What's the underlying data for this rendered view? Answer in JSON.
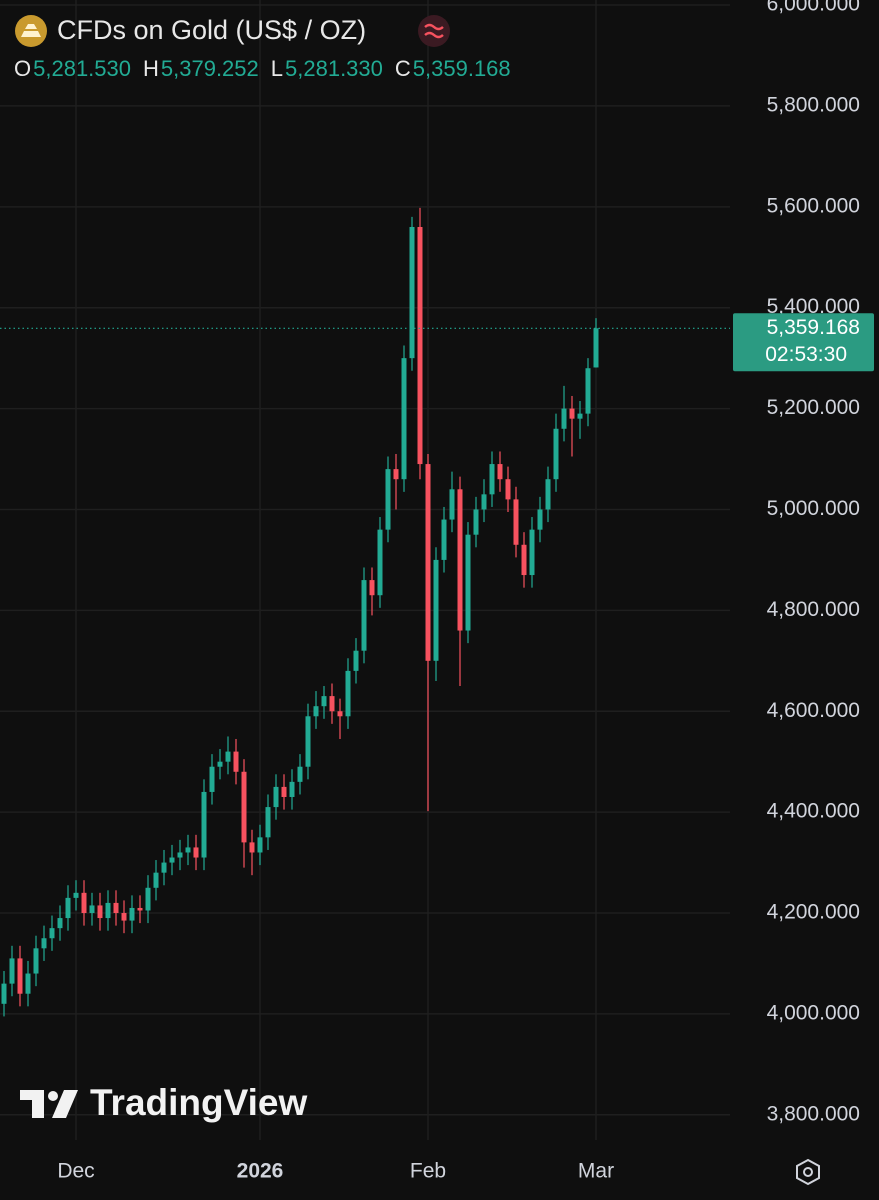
{
  "chart_data": {
    "type": "candlestick",
    "title": "CFDs on Gold (US$ / OZ)",
    "ohlc": [
      {
        "label": "O",
        "value": "5,281.530"
      },
      {
        "label": "H",
        "value": "5,379.252"
      },
      {
        "label": "L",
        "value": "5,281.330"
      },
      {
        "label": "C",
        "value": "5,359.168"
      }
    ],
    "categories": [
      null,
      null,
      null,
      null,
      null,
      null,
      null,
      null,
      null,
      "Dec",
      null,
      null,
      null,
      null,
      null,
      null,
      null,
      null,
      null,
      null,
      null,
      null,
      null,
      null,
      null,
      null,
      null,
      null,
      null,
      null,
      null,
      null,
      "2026",
      null,
      null,
      null,
      null,
      null,
      null,
      null,
      null,
      null,
      null,
      null,
      null,
      null,
      null,
      null,
      null,
      null,
      null,
      null,
      null,
      "Feb",
      null,
      null,
      null,
      null,
      null,
      null,
      null,
      null,
      null,
      null,
      null,
      null,
      null,
      null,
      null,
      null,
      null,
      null,
      null,
      null,
      "Mar"
    ],
    "open": [
      4020,
      4060,
      4110,
      4040,
      4080,
      4130,
      4150,
      4170,
      4190,
      4230,
      4240,
      4200,
      4215,
      4190,
      4220,
      4200,
      4185,
      4210,
      4205,
      4250,
      4280,
      4300,
      4310,
      4320,
      4330,
      4310,
      4440,
      4490,
      4500,
      4520,
      4480,
      4340,
      4320,
      4350,
      4410,
      4450,
      4430,
      4460,
      4490,
      4590,
      4610,
      4630,
      4600,
      4590,
      4680,
      4720,
      4860,
      4830,
      4960,
      5080,
      5060,
      5300,
      5560,
      5090,
      4700,
      4900,
      4980,
      5040,
      4760,
      4950,
      5000,
      5030,
      5090,
      5060,
      5020,
      4930,
      4870,
      4960,
      5000,
      5060,
      5160,
      5200,
      5180,
      5190,
      5281.53
    ],
    "high": [
      4085,
      4135,
      4135,
      4105,
      4155,
      4175,
      4195,
      4215,
      4255,
      4265,
      4265,
      4240,
      4240,
      4245,
      4245,
      4225,
      4235,
      4235,
      4275,
      4305,
      4325,
      4335,
      4345,
      4355,
      4355,
      4465,
      4515,
      4525,
      4550,
      4545,
      4505,
      4365,
      4375,
      4435,
      4475,
      4475,
      4485,
      4515,
      4615,
      4640,
      4650,
      4655,
      4625,
      4705,
      4745,
      4885,
      4885,
      4985,
      5105,
      5110,
      5325,
      5580,
      5598,
      5110,
      4925,
      5005,
      5075,
      5065,
      4975,
      5025,
      5060,
      5115,
      5115,
      5085,
      5045,
      4955,
      4985,
      5025,
      5085,
      5190,
      5245,
      5225,
      5215,
      5300,
      5379.252
    ],
    "low": [
      3995,
      4035,
      4015,
      4015,
      4055,
      4105,
      4125,
      4145,
      4165,
      4205,
      4175,
      4175,
      4165,
      4165,
      4175,
      4160,
      4160,
      4180,
      4180,
      4225,
      4255,
      4275,
      4285,
      4295,
      4285,
      4285,
      4415,
      4465,
      4475,
      4455,
      4290,
      4275,
      4295,
      4325,
      4385,
      4405,
      4405,
      4435,
      4465,
      4565,
      4585,
      4575,
      4545,
      4565,
      4655,
      4695,
      4790,
      4805,
      4935,
      5000,
      5035,
      5275,
      5060,
      4402,
      4660,
      4875,
      4955,
      4650,
      4735,
      4925,
      4975,
      5005,
      5035,
      4995,
      4905,
      4845,
      4845,
      4935,
      4975,
      5035,
      5135,
      5105,
      5140,
      5165,
      5281.33
    ],
    "close": [
      4060,
      4110,
      4040,
      4080,
      4130,
      4150,
      4170,
      4190,
      4230,
      4240,
      4200,
      4215,
      4190,
      4220,
      4200,
      4185,
      4210,
      4205,
      4250,
      4280,
      4300,
      4310,
      4320,
      4330,
      4310,
      4440,
      4490,
      4500,
      4520,
      4480,
      4340,
      4320,
      4350,
      4410,
      4450,
      4430,
      4460,
      4490,
      4590,
      4610,
      4630,
      4600,
      4590,
      4680,
      4720,
      4860,
      4830,
      4960,
      5080,
      5060,
      5300,
      5560,
      5090,
      4700,
      4900,
      4980,
      5040,
      4760,
      4950,
      5000,
      5030,
      5090,
      5060,
      5020,
      4930,
      4870,
      4960,
      5000,
      5060,
      5160,
      5200,
      5180,
      5190,
      5280,
      5359.168
    ],
    "up_color": "#22ab94",
    "down_color": "#f7525f",
    "price_label": {
      "value": 5359.168,
      "label": "5,359.168",
      "countdown": "02:53:30"
    },
    "ylim": [
      3750,
      6010
    ],
    "yticks": [
      {
        "value": 3800,
        "label": "3,800.000"
      },
      {
        "value": 4000,
        "label": "4,000.000"
      },
      {
        "value": 4200,
        "label": "4,200.000"
      },
      {
        "value": 4400,
        "label": "4,400.000"
      },
      {
        "value": 4600,
        "label": "4,600.000"
      },
      {
        "value": 4800,
        "label": "4,800.000"
      },
      {
        "value": 5000,
        "label": "5,000.000"
      },
      {
        "value": 5200,
        "label": "5,200.000"
      },
      {
        "value": 5400,
        "label": "5,400.000"
      },
      {
        "value": 5600,
        "label": "5,600.000"
      },
      {
        "value": 5800,
        "label": "5,800.000"
      },
      {
        "value": 6000,
        "label": "6,000.000"
      }
    ],
    "grid": true,
    "watermark": "TradingView"
  }
}
